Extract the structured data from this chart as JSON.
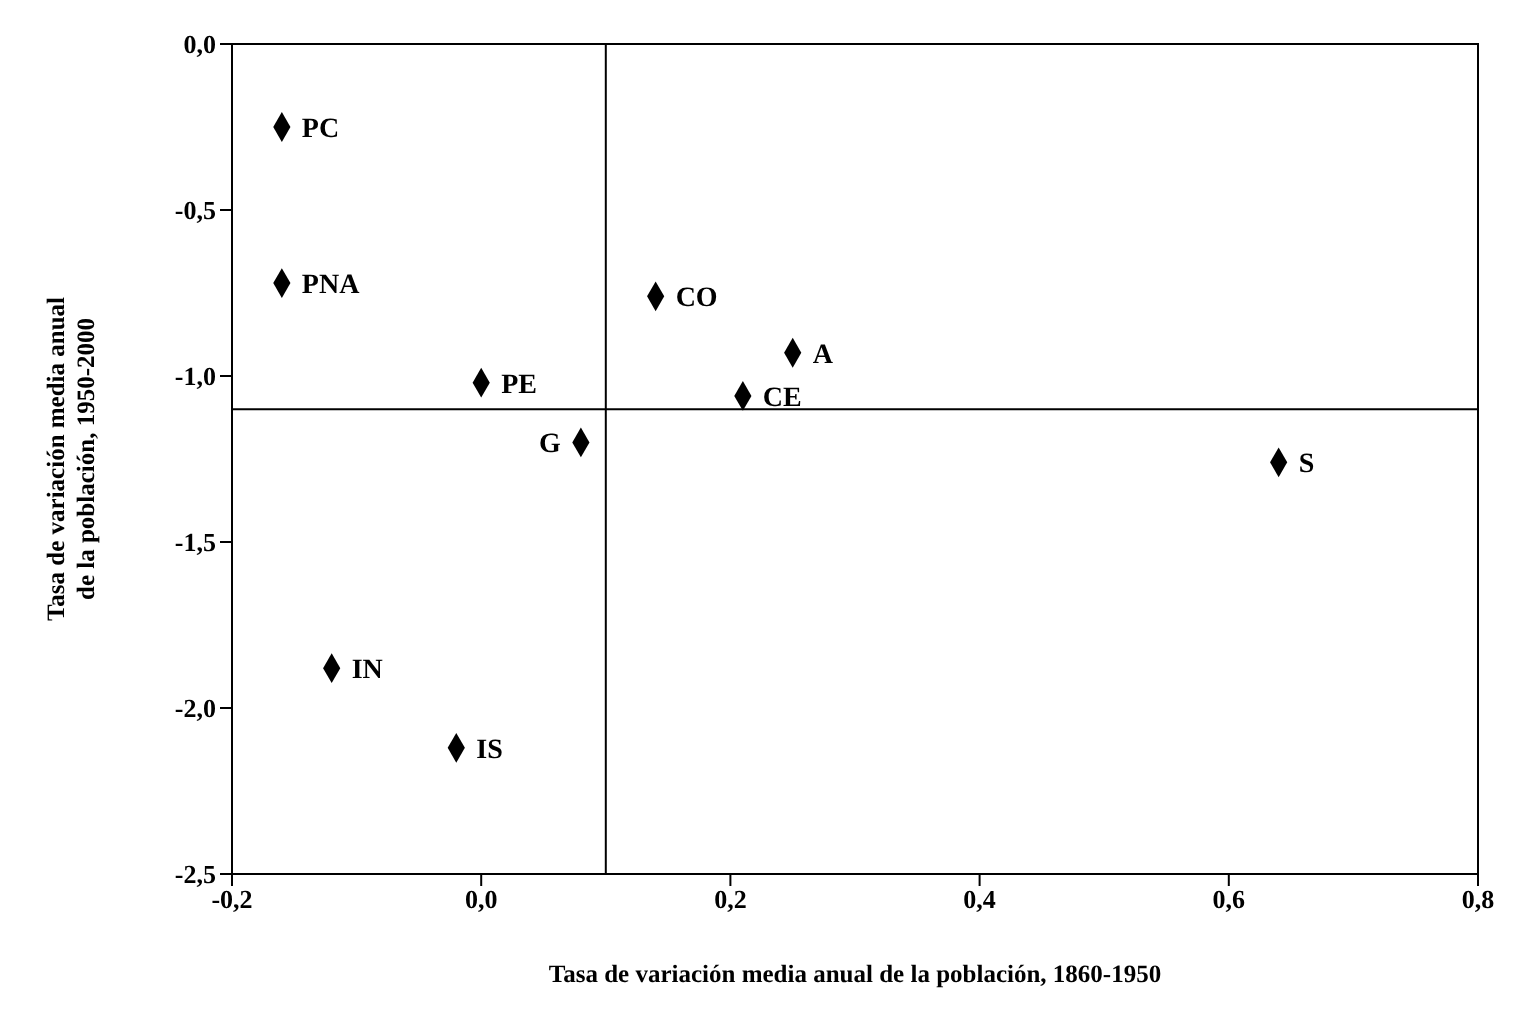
{
  "chart_data": {
    "type": "scatter",
    "xlabel": "Tasa de variación media anual de la población, 1860-1950",
    "ylabel": "Tasa de variación media anual de la población, 1950-2000",
    "series": [
      {
        "color": "#000000",
        "x": [
          -0.16,
          -0.16,
          0.0,
          0.08,
          -0.12,
          -0.02,
          0.14,
          0.25,
          0.21,
          0.64
        ],
        "values": [
          -0.25,
          -0.72,
          -1.02,
          -1.2,
          -1.88,
          -2.12,
          -0.76,
          -0.93,
          -1.06,
          -1.26
        ]
      }
    ],
    "annotations": [
      {
        "text": "PC",
        "x": -0.16,
        "y": -0.25
      },
      {
        "text": "PNA",
        "x": -0.16,
        "y": -0.72
      },
      {
        "text": "PE",
        "x": 0.0,
        "y": -1.02
      },
      {
        "text": "G",
        "x": 0.08,
        "y": -1.2
      },
      {
        "text": "IN",
        "x": -0.12,
        "y": -1.88
      },
      {
        "text": "IS",
        "x": -0.02,
        "y": -2.12
      },
      {
        "text": "CO",
        "x": 0.14,
        "y": -0.76
      },
      {
        "text": "A",
        "x": 0.25,
        "y": -0.93
      },
      {
        "text": "CE",
        "x": 0.21,
        "y": -1.06
      },
      {
        "text": "S",
        "x": 0.64,
        "y": -1.26
      }
    ],
    "ref_lines": [
      {
        "axis": "x",
        "value": 0.1
      },
      {
        "axis": "y",
        "value": -1.1
      }
    ],
    "xlim": [
      -0.2,
      0.8
    ],
    "xticks": [
      {
        "value": -0.2,
        "label": "-0,2"
      },
      {
        "value": 0.0,
        "label": "0,0"
      },
      {
        "value": 0.2,
        "label": "0,2"
      },
      {
        "value": 0.4,
        "label": "0,4"
      },
      {
        "value": 0.6,
        "label": "0,6"
      },
      {
        "value": 0.8,
        "label": "0,8"
      }
    ],
    "ylim": [
      -2.5,
      0.0
    ],
    "yticks": [
      {
        "value": 0.0,
        "label": "0,0"
      },
      {
        "value": -0.5,
        "label": "-0,5"
      },
      {
        "value": -1.0,
        "label": "-1,0"
      },
      {
        "value": -1.5,
        "label": "-1,5"
      },
      {
        "value": -2.0,
        "label": "-2,0"
      },
      {
        "value": -2.5,
        "label": "-2,5"
      }
    ],
    "grid": false,
    "legend": false,
    "marker": "diamond"
  }
}
